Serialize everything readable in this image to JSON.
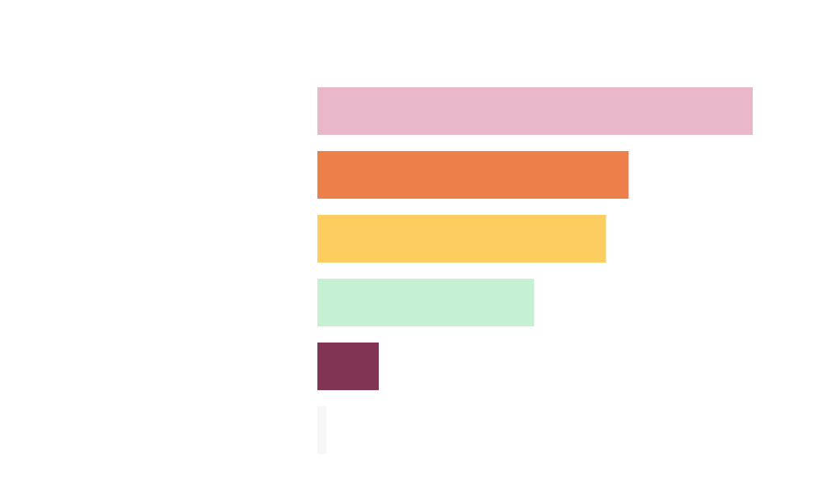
{
  "chart_data": {
    "type": "bar",
    "orientation": "horizontal",
    "categories": [
      "",
      "",
      "",
      "",
      "",
      ""
    ],
    "values": [
      100,
      71.5,
      66.3,
      49.8,
      14.1,
      2
    ],
    "colors": [
      "#e8b7c9",
      "#ed804a",
      "#fdcd60",
      "#c5f1d2",
      "#823454",
      "#f7f7f7"
    ],
    "xlim": [
      0,
      100
    ],
    "title": "",
    "xlabel": "",
    "ylabel": "",
    "grid": false,
    "legend": "none"
  }
}
